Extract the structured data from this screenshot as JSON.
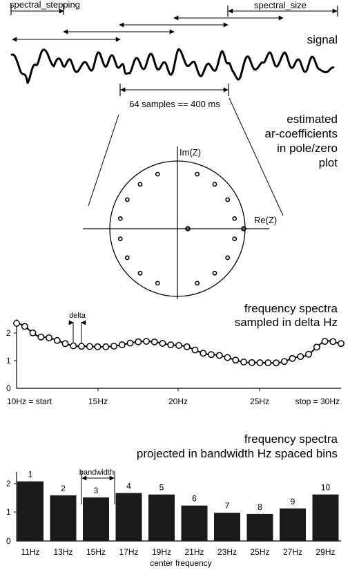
{
  "signal": {
    "label_stepping": "spectral_stepping",
    "label_size": "spectral_size",
    "title": "signal",
    "window_label": "64 samples == 400 ms"
  },
  "pole_zero": {
    "title_lines": [
      "estimated",
      "ar-coefficients",
      "in pole/zero",
      "plot"
    ],
    "im_label": "Im(Z)",
    "re_label": "Re(Z)",
    "poles_deg": [
      10,
      30,
      50,
      70,
      110,
      130,
      150,
      170,
      -10,
      -30,
      -50,
      -70,
      -110,
      -130,
      -150,
      -170
    ]
  },
  "spectrum": {
    "title_lines": [
      "frequency spectra",
      "sampled in delta Hz"
    ],
    "delta_label": "delta",
    "y_ticks": [
      "2",
      "1",
      "0"
    ],
    "x_labels": [
      "10Hz = start",
      "15Hz",
      "20Hz",
      "25Hz",
      "stop = 30Hz"
    ]
  },
  "bins": {
    "title_lines": [
      "frequency spectra",
      "projected in bandwidth Hz spaced bins"
    ],
    "bandwidth_label": "bandwidth",
    "xlabel": "center frequency",
    "y_ticks": [
      "2",
      "1",
      "0"
    ]
  },
  "chart_data": {
    "type": "bar",
    "categories": [
      "11Hz",
      "13Hz",
      "15Hz",
      "17Hz",
      "19Hz",
      "21Hz",
      "23Hz",
      "25Hz",
      "27Hz",
      "29Hz"
    ],
    "bar_numbers": [
      "1",
      "2",
      "3",
      "4",
      "5",
      "6",
      "7",
      "8",
      "9",
      "10"
    ],
    "values": [
      2.05,
      1.57,
      1.5,
      1.65,
      1.6,
      1.22,
      0.97,
      0.93,
      1.12,
      1.6
    ],
    "ylim": [
      0,
      2.4
    ]
  }
}
